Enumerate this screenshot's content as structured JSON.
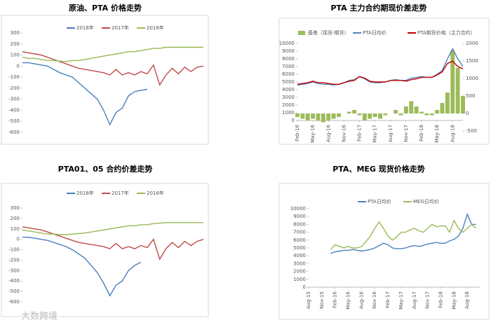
{
  "chart_data": [
    {
      "type": "line",
      "title": "原油、PTA 价格走势",
      "legend": "top",
      "grid": false,
      "ylim": [
        -600,
        300
      ],
      "yticks": [
        300,
        200,
        100,
        0,
        -100,
        -200,
        -300,
        -400,
        -500,
        -600
      ],
      "series": [
        {
          "name": "2018年",
          "color": "#4a7ebb",
          "values": [
            30,
            30,
            20,
            10,
            0,
            -30,
            -60,
            -80,
            -100,
            -150,
            -200,
            -250,
            -300,
            -400,
            -530,
            -420,
            -380,
            -270,
            -230,
            -220,
            -210,
            null,
            null,
            null,
            null,
            null,
            null,
            null,
            null,
            null
          ]
        },
        {
          "name": "2017年",
          "color": "#be4b48",
          "values": [
            130,
            120,
            110,
            100,
            80,
            60,
            40,
            20,
            0,
            -20,
            -30,
            -40,
            -50,
            -60,
            -80,
            -30,
            -80,
            -60,
            -80,
            -50,
            -70,
            10,
            -170,
            -80,
            -20,
            -70,
            -10,
            -50,
            -10,
            0
          ]
        },
        {
          "name": "2016年",
          "color": "#98b954",
          "values": [
            80,
            70,
            70,
            60,
            50,
            50,
            45,
            40,
            50,
            50,
            60,
            70,
            80,
            90,
            100,
            110,
            120,
            130,
            130,
            140,
            150,
            160,
            160,
            170,
            170,
            170,
            170,
            170,
            170,
            170
          ]
        }
      ]
    },
    {
      "type": "line",
      "title": "PTA 主力合约期现价差走势",
      "legend": "top",
      "grid": false,
      "xlim": [
        0,
        32
      ],
      "xticks": [
        {
          "value": 0,
          "label": "Feb-16"
        },
        {
          "value": 3,
          "label": "May-16"
        },
        {
          "value": 6,
          "label": "Aug-16"
        },
        {
          "value": 9,
          "label": "Nov-16"
        },
        {
          "value": 12,
          "label": "Feb-17"
        },
        {
          "value": 15,
          "label": "May-17"
        },
        {
          "value": 18,
          "label": "Aug-17"
        },
        {
          "value": 21,
          "label": "Nov-17"
        },
        {
          "value": 24,
          "label": "Feb-18"
        },
        {
          "value": 27,
          "label": "May-18"
        },
        {
          "value": 30,
          "label": "Aug-18"
        }
      ],
      "ylim": [
        0,
        10000
      ],
      "yticks": [
        0,
        1000,
        2000,
        3000,
        4000,
        5000,
        6000,
        7000,
        8000,
        9000,
        10000
      ],
      "y2lim": [
        -500,
        2000
      ],
      "y2ticks": [
        -500,
        0,
        500,
        1000,
        1500,
        2000
      ],
      "series": [
        {
          "name": "基差（现货-期货）",
          "color": "#9bbb59",
          "kind": "bar",
          "axis": "y2",
          "values": [
            -100,
            -150,
            -200,
            -150,
            -200,
            -250,
            -200,
            -150,
            -100,
            0,
            50,
            100,
            -50,
            -200,
            -150,
            -100,
            -150,
            -50,
            0,
            100,
            -50,
            200,
            350,
            200,
            50,
            -50,
            -50,
            100,
            300,
            600,
            1800,
            1300,
            500
          ]
        },
        {
          "name": "PTA日均价",
          "color": "#4f81bd",
          "values": [
            4600,
            4700,
            4800,
            5000,
            4800,
            4700,
            4700,
            4600,
            4700,
            4900,
            5200,
            5300,
            5700,
            5400,
            5000,
            4900,
            4900,
            5000,
            5200,
            5300,
            5200,
            5200,
            5500,
            5600,
            5700,
            5600,
            5600,
            6000,
            6500,
            8000,
            9300,
            8000,
            7000
          ]
        },
        {
          "name": "PTA期货价格（主力合约）",
          "color": "#c00000",
          "values": [
            4700,
            4800,
            4900,
            5100,
            4900,
            4900,
            4800,
            4700,
            4700,
            4900,
            5100,
            5200,
            5700,
            5500,
            5100,
            5000,
            5000,
            5000,
            5200,
            5200,
            5200,
            5100,
            5300,
            5400,
            5600,
            5600,
            5600,
            5900,
            6300,
            7400,
            7700,
            7000,
            6700
          ]
        }
      ]
    },
    {
      "type": "line",
      "title": "PTA01、05 合约价差走势",
      "legend": "top",
      "grid": false,
      "ylim": [
        -600,
        300
      ],
      "yticks": [
        300,
        200,
        100,
        0,
        -100,
        -200,
        -300,
        -400,
        -500,
        -600
      ],
      "series": [
        {
          "name": "2018年",
          "color": "#4a7ebb",
          "values": [
            20,
            20,
            10,
            0,
            -10,
            -30,
            -50,
            -70,
            -100,
            -140,
            -180,
            -250,
            -320,
            -420,
            -540,
            -440,
            -400,
            -300,
            -250,
            -220,
            null,
            null,
            null,
            null,
            null,
            null,
            null,
            null,
            null,
            null
          ]
        },
        {
          "name": "2017年",
          "color": "#be4b48",
          "values": [
            120,
            110,
            100,
            90,
            70,
            50,
            30,
            10,
            -10,
            -30,
            -40,
            -50,
            -60,
            -70,
            -90,
            -40,
            -90,
            -70,
            -90,
            -60,
            -80,
            0,
            -190,
            -90,
            -30,
            -80,
            -20,
            -60,
            -20,
            0
          ]
        },
        {
          "name": "2016年",
          "color": "#98b954",
          "values": [
            90,
            80,
            70,
            60,
            50,
            50,
            45,
            45,
            50,
            55,
            60,
            70,
            80,
            90,
            100,
            110,
            120,
            130,
            130,
            140,
            140,
            150,
            155,
            160,
            160,
            160,
            160,
            160,
            160,
            160
          ]
        }
      ]
    },
    {
      "type": "line",
      "title": "PTA、MEG 现货价格走势",
      "legend": "top",
      "grid": false,
      "xlim": [
        0,
        39
      ],
      "xticks": [
        {
          "value": 0,
          "label": "Aug-15"
        },
        {
          "value": 3,
          "label": "Nov-15"
        },
        {
          "value": 6,
          "label": "Feb-16"
        },
        {
          "value": 9,
          "label": "May-16"
        },
        {
          "value": 12,
          "label": "Aug-16"
        },
        {
          "value": 15,
          "label": "Nov-16"
        },
        {
          "value": 18,
          "label": "Feb-17"
        },
        {
          "value": 21,
          "label": "May-17"
        },
        {
          "value": 24,
          "label": "Aug-17"
        },
        {
          "value": 27,
          "label": "Nov-17"
        },
        {
          "value": 30,
          "label": "Feb-18"
        },
        {
          "value": 33,
          "label": "May-18"
        },
        {
          "value": 36,
          "label": "Aug-18"
        }
      ],
      "ylim": [
        0,
        10000
      ],
      "yticks": [
        0,
        1000,
        2000,
        3000,
        4000,
        5000,
        6000,
        7000,
        8000,
        9000,
        10000
      ],
      "series": [
        {
          "name": "PTA日均价",
          "color": "#4f81bd",
          "values": [
            null,
            null,
            null,
            null,
            null,
            4300,
            4500,
            4600,
            4700,
            4700,
            4800,
            4700,
            4600,
            4700,
            4800,
            5000,
            5300,
            5600,
            5400,
            5000,
            4900,
            4900,
            5000,
            5200,
            5300,
            5200,
            5300,
            5500,
            5600,
            5700,
            5600,
            5600,
            5900,
            6100,
            6500,
            7500,
            9300,
            8000,
            8000
          ]
        },
        {
          "name": "MEG日均价",
          "color": "#9bbb59",
          "values": [
            null,
            null,
            null,
            null,
            null,
            4800,
            5400,
            5200,
            5000,
            5200,
            5000,
            5000,
            5200,
            5800,
            6500,
            7500,
            8300,
            7500,
            6500,
            6000,
            6400,
            7000,
            7000,
            7300,
            7500,
            7200,
            7000,
            7500,
            8000,
            7700,
            7800,
            7800,
            7000,
            8500,
            7500,
            7000,
            7500,
            8000,
            7500
          ]
        }
      ]
    }
  ],
  "watermark": "大数跨境"
}
